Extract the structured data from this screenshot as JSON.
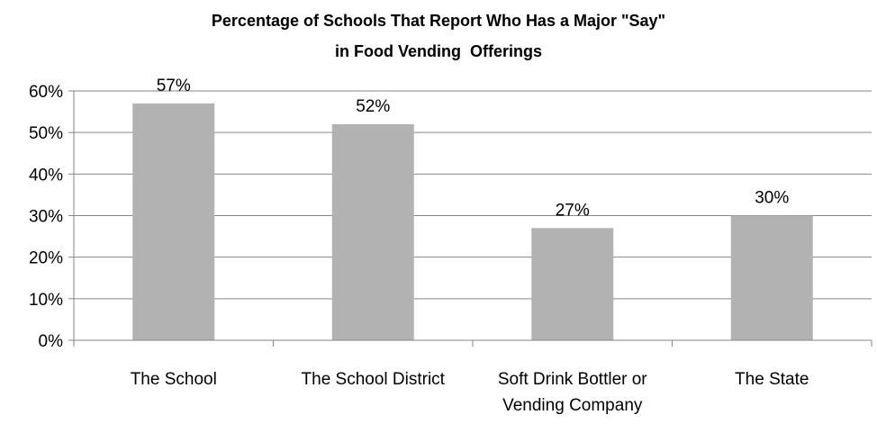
{
  "chart_data": {
    "type": "bar",
    "title": "Percentage of Schools That Report Who Has a Major \"Say\"",
    "subtitle": "in Food Vending  Offerings",
    "categories": [
      [
        "The School"
      ],
      [
        "The School District"
      ],
      [
        "Soft Drink Bottler or",
        "Vending Company"
      ],
      [
        "The State"
      ]
    ],
    "values": [
      57,
      52,
      27,
      30
    ],
    "value_labels": [
      "57%",
      "52%",
      "27%",
      "30%"
    ],
    "ylim": [
      0,
      60
    ],
    "yticks": [
      0,
      10,
      20,
      30,
      40,
      50,
      60
    ],
    "ytick_labels": [
      "0%",
      "10%",
      "20%",
      "30%",
      "40%",
      "50%",
      "60%"
    ],
    "xlabel": "",
    "ylabel": "",
    "grid": true,
    "legend": "none",
    "colors": {
      "bar": "#b2b2b2",
      "grid": "#868686",
      "axis": "#868686"
    }
  }
}
